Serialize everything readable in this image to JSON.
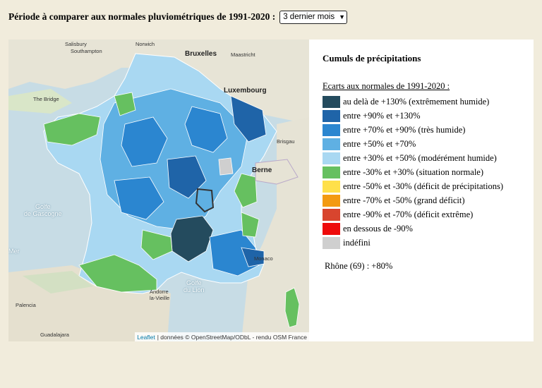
{
  "header": {
    "label": "Période à comparer aux normales pluviométriques de 1991-2020 :",
    "period_select": {
      "value": "3  dernier mois"
    }
  },
  "map": {
    "labels": {
      "brussels": "Bruxelles",
      "luxembourg": "Luxembourg",
      "berne": "Berne",
      "golfe_gascogne": "Golfe\nde Gascogne",
      "golfe_lion": "Golfe\ndu Lion",
      "mer": "Mer",
      "the_bridge": "The Bridge",
      "southampton": "Southampton",
      "salisbury": "Salisbury",
      "norwich": "Norwich",
      "maastricht": "Maastricht",
      "strasbourg": "Brisgau",
      "monaco": "Monaco",
      "andorre": "Andorre\nla-Vieille",
      "palencia": "Palencia",
      "guadalajara": "Guadalajara"
    },
    "attribution": {
      "leaflet": "Leaflet",
      "text": "| données © OpenStreetMap/ODbL - rendu OSM France"
    }
  },
  "panel": {
    "title": "Cumuls de précipitations",
    "legend_heading": "Ecarts aux normales de 1991-2020 :",
    "legend": [
      {
        "color": "#244b5e",
        "label": "au delà de +130%  (extrêmement humide)"
      },
      {
        "color": "#1f64a8",
        "label": "entre +90% et +130%"
      },
      {
        "color": "#2b86d0",
        "label": "entre +70% et +90%  (très humide)"
      },
      {
        "color": "#5fb0e3",
        "label": "entre +50% et +70%"
      },
      {
        "color": "#a9d8f2",
        "label": "entre +30% et +50%  (modérément humide)"
      },
      {
        "color": "#66c060",
        "label": "entre -30% et +30%  (situation normale)"
      },
      {
        "color": "#ffe04a",
        "label": "entre -50% et -30%  (déficit de précipitations)"
      },
      {
        "color": "#f39a12",
        "label": "entre -70% et -50%  (grand déficit)"
      },
      {
        "color": "#d8452e",
        "label": "entre -90% et -70%  (déficit extrême)"
      },
      {
        "color": "#ee0b0b",
        "label": "en dessous de -90%"
      },
      {
        "color": "#cfcfcf",
        "label": "indéfini"
      }
    ],
    "result": "Rhône (69) : +80%"
  }
}
